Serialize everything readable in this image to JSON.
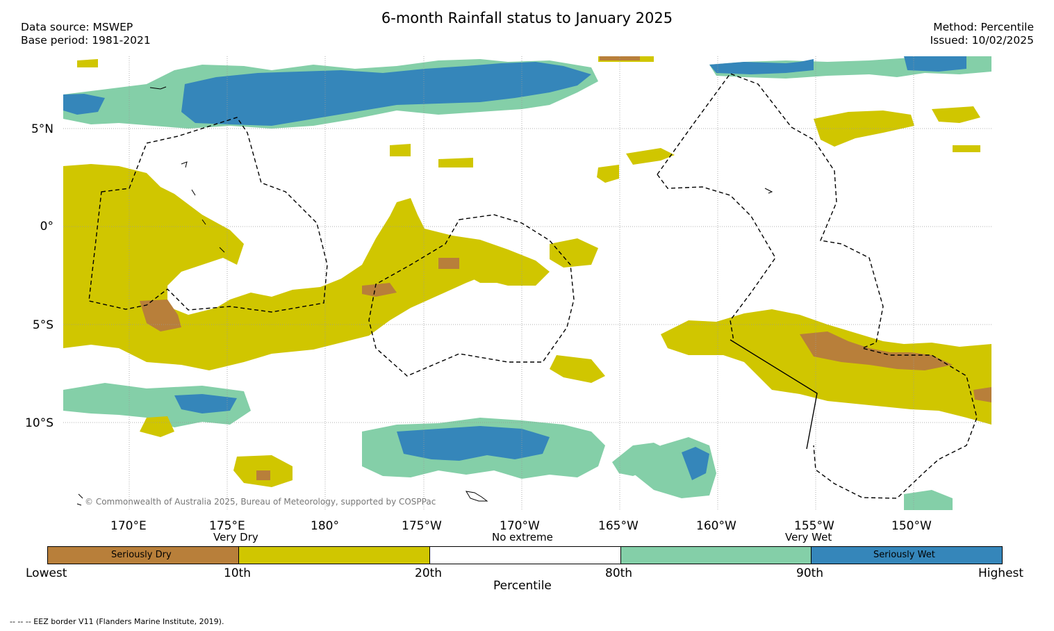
{
  "title": "6-month Rainfall status to January 2025",
  "data_source": "Data source: MSWEP",
  "base_period": "Base period: 1981-2021",
  "method": "Method: Percentile",
  "issued": "Issued: 10/02/2025",
  "copyright": "© Commonwealth of Australia 2025, Bureau of Meteorology, supported by COSPPac",
  "footnote": "--  --  -- EEZ border V11 (Flanders Marine Institute, 2019).",
  "lon_labels": [
    "170°E",
    "175°E",
    "180°",
    "175°W",
    "170°W",
    "165°W",
    "160°W",
    "155°W",
    "150°W"
  ],
  "lat_labels": [
    "5°N",
    "0°",
    "5°S",
    "10°S"
  ],
  "colorbar": {
    "top_labels": [
      "Very Dry",
      "No extreme",
      "Very Wet"
    ],
    "inside_labels": [
      "Seriously Dry",
      "Seriously Wet"
    ],
    "bottom_labels": [
      "Lowest",
      "10th",
      "20th",
      "80th",
      "90th",
      "Highest"
    ],
    "axis_title": "Percentile",
    "colors": [
      "#b87f3a",
      "#d0c600",
      "#ffffff",
      "#84cfa8",
      "#3586ba"
    ]
  }
}
